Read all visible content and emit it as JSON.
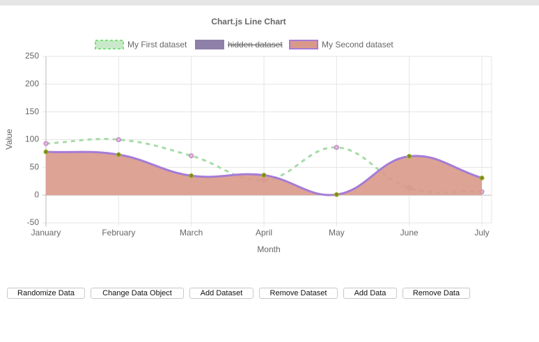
{
  "chart_data": {
    "type": "line",
    "title": "Chart.js Line Chart",
    "x_label": "Month",
    "y_label": "Value",
    "categories": [
      "January",
      "February",
      "March",
      "April",
      "May",
      "June",
      "July"
    ],
    "series": [
      {
        "name": "My First dataset",
        "color": "#a6dba6",
        "point_color": "#e6b3e0",
        "dashed": true,
        "fill": false,
        "values": [
          93,
          100,
          71,
          27,
          86,
          13,
          6
        ]
      },
      {
        "name": "hidden dataset",
        "color": "#8e80a8",
        "hidden": true
      },
      {
        "name": "My Second dataset",
        "color": "#a57bd6",
        "point_color": "#7d8a1e",
        "fill_color": "#d9998a",
        "fill": true,
        "values": [
          78,
          73,
          35,
          36,
          1,
          70,
          31
        ]
      }
    ],
    "ylim": [
      -50,
      250
    ],
    "yticks": [
      -50,
      0,
      50,
      100,
      150,
      200,
      250
    ],
    "grid": true
  },
  "buttons": [
    "Randomize Data",
    "Change Data Object",
    "Add Dataset",
    "Remove Dataset",
    "Add Data",
    "Remove Data"
  ]
}
